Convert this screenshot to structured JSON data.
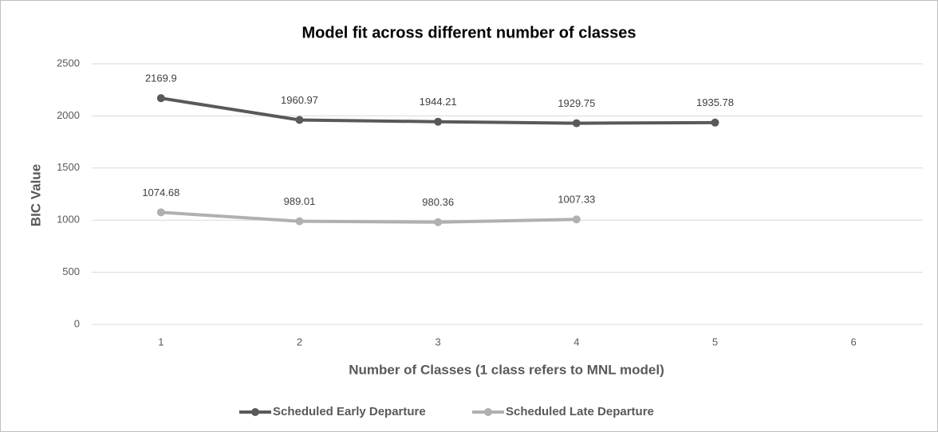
{
  "chart_data": {
    "type": "line",
    "title": "Model fit across different number of classes",
    "x_label": "Number of Classes (1 class refers to MNL model)",
    "y_label": "BIC Value",
    "categories": [
      "1",
      "2",
      "3",
      "4",
      "5",
      "6"
    ],
    "series": [
      {
        "name": "Scheduled Early Departure",
        "color": "#595959",
        "values": [
          2169.9,
          1960.97,
          1944.21,
          1929.75,
          1935.78,
          null
        ]
      },
      {
        "name": "Scheduled Late Departure",
        "color": "#b0b0b0",
        "values": [
          1074.68,
          989.01,
          980.36,
          1007.33,
          null,
          null
        ]
      }
    ],
    "ylim": [
      0,
      2500
    ],
    "yticks": [
      0,
      500,
      1000,
      1500,
      2000,
      2500
    ],
    "grid": true,
    "legend": "bottom"
  }
}
